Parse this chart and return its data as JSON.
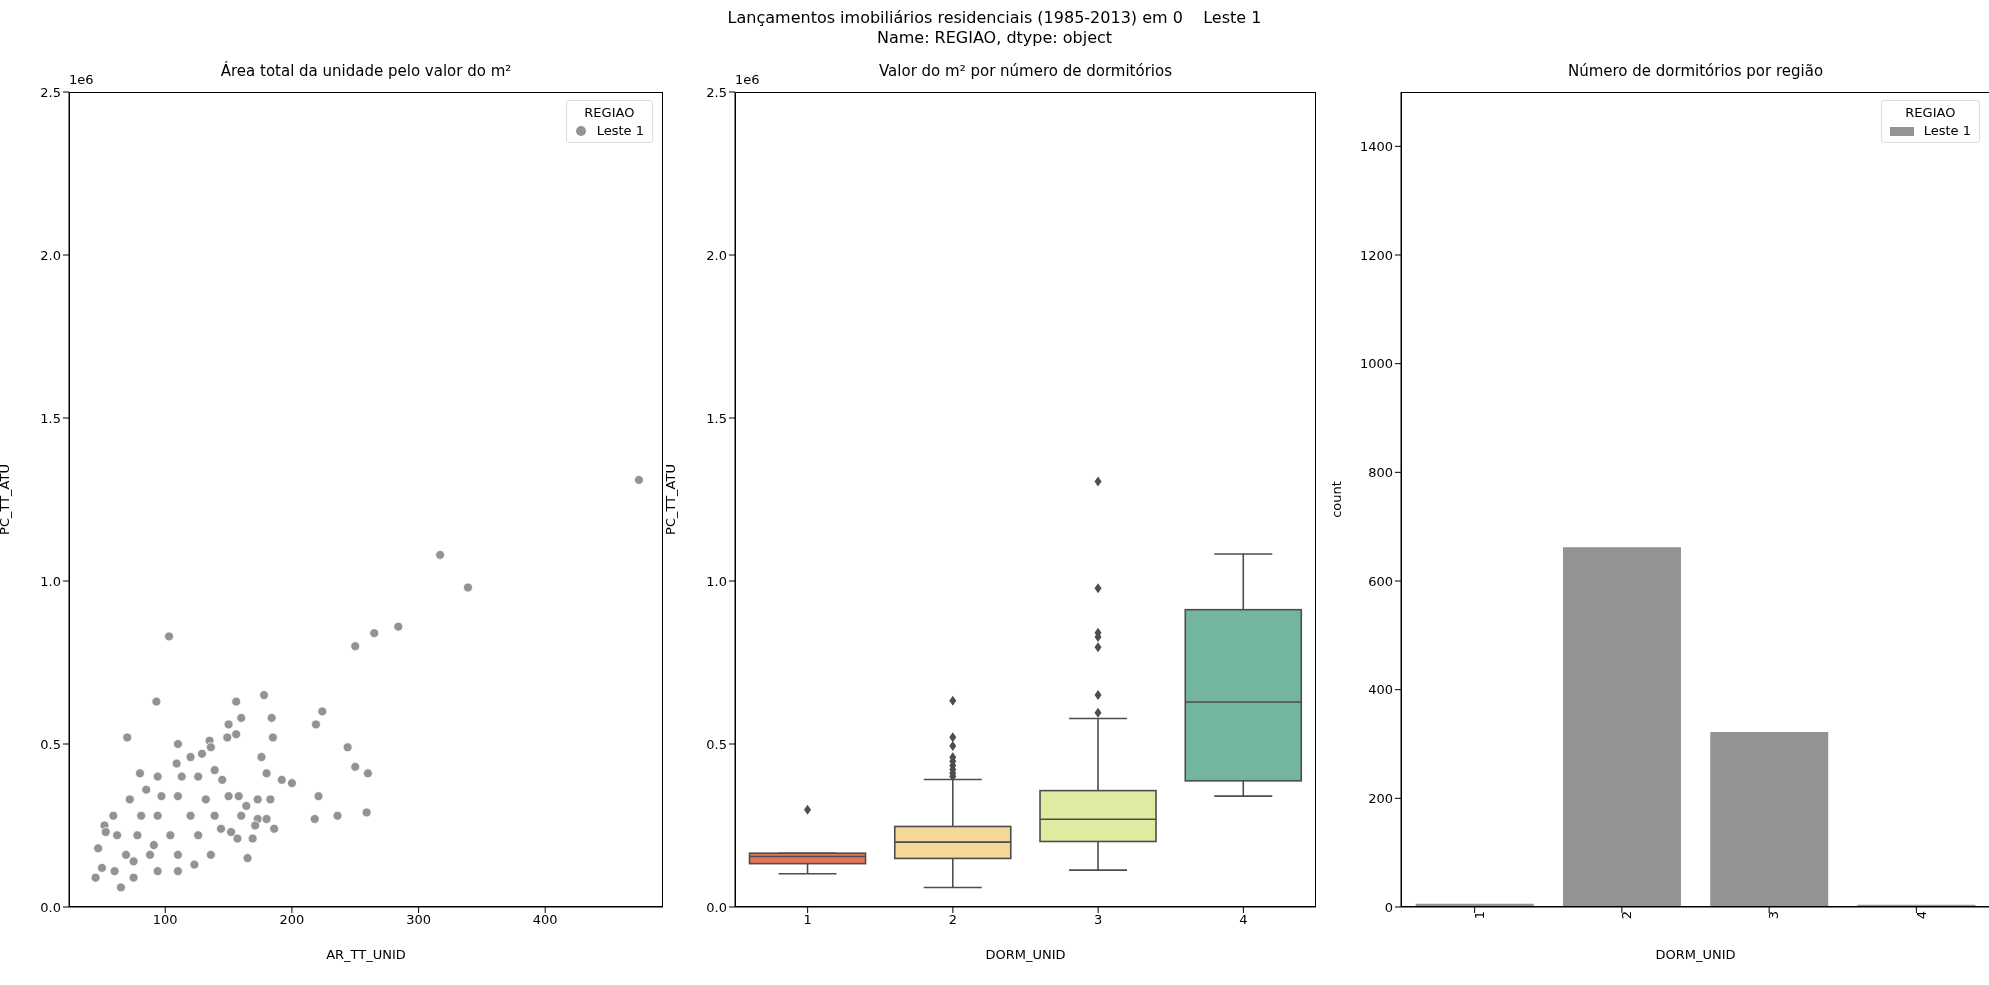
{
  "chart_data": [
    {
      "type": "other",
      "title": "Lançamentos imobiliários residenciais (1985-2013) em 0    Leste 1",
      "subtitle": "Name: REGIAO, dtype: object"
    },
    {
      "type": "scatter",
      "title": "Área total da unidade pelo valor do m²",
      "xlabel": "AR_TT_UNID",
      "ylabel": "PC_TT_ATU",
      "annotations": [
        "1e6"
      ],
      "legend_title": "REGIAO",
      "legend": "top right",
      "marker": "circle",
      "xlim": [
        24,
        493
      ],
      "xticks": [
        100,
        200,
        300,
        400
      ],
      "ylim": [
        0,
        2.5
      ],
      "yticks": [
        {
          "value": 0,
          "label": "0.0"
        },
        {
          "value": 0.5,
          "label": "0.5"
        },
        {
          "value": 1,
          "label": "1.0"
        },
        {
          "value": 1.5,
          "label": "1.5"
        },
        {
          "value": 2,
          "label": "2.0"
        },
        {
          "value": 2.5,
          "label": "2.5"
        }
      ],
      "series": [
        {
          "name": "Leste 1",
          "color": "#939393",
          "x": [
            474,
            317,
            339,
            103,
            250,
            265,
            284,
            93,
            178,
            156,
            224,
            219,
            160,
            184,
            150,
            70,
            244,
            250,
            260,
            185,
            156,
            149,
            176,
            180,
            192,
            200,
            221,
            173,
            183,
            218,
            236,
            259,
            173,
            180,
            186,
            169,
            165,
            157,
            152,
            110,
            135,
            80,
            45,
            47,
            52,
            65,
            60,
            136,
            129,
            120,
            109,
            94,
            85,
            72,
            59,
            53,
            50,
            75,
            94,
            110,
            123,
            136,
            144,
            150,
            145,
            158,
            164,
            171,
            160,
            78,
            94,
            110,
            126,
            88,
            104,
            120,
            132,
            69,
            62,
            81,
            97,
            113,
            139,
            110,
            126,
            139,
            75,
            91
          ],
          "values": [
            1.31,
            1.08,
            0.98,
            0.83,
            0.8,
            0.84,
            0.86,
            0.63,
            0.65,
            0.63,
            0.6,
            0.56,
            0.58,
            0.58,
            0.56,
            0.52,
            0.49,
            0.43,
            0.41,
            0.52,
            0.53,
            0.52,
            0.46,
            0.41,
            0.39,
            0.38,
            0.34,
            0.33,
            0.33,
            0.27,
            0.28,
            0.29,
            0.27,
            0.27,
            0.24,
            0.21,
            0.15,
            0.21,
            0.23,
            0.5,
            0.51,
            0.41,
            0.09,
            0.18,
            0.25,
            0.06,
            0.11,
            0.49,
            0.47,
            0.46,
            0.44,
            0.4,
            0.36,
            0.33,
            0.28,
            0.23,
            0.12,
            0.09,
            0.11,
            0.11,
            0.13,
            0.16,
            0.24,
            0.34,
            0.39,
            0.34,
            0.31,
            0.25,
            0.28,
            0.22,
            0.28,
            0.34,
            0.4,
            0.16,
            0.22,
            0.28,
            0.33,
            0.16,
            0.22,
            0.28,
            0.34,
            0.4,
            0.42,
            0.16,
            0.22,
            0.28,
            0.14,
            0.19
          ]
        }
      ]
    },
    {
      "type": "box",
      "title": "Valor do m² por número de dormitórios",
      "xlabel": "DORM_UNID",
      "ylabel": "PC_TT_ATU",
      "annotations": [
        "1e6"
      ],
      "marker": "diamond",
      "categories": [
        "1",
        "2",
        "3",
        "4"
      ],
      "colors": [
        "#e2775a",
        "#f3d897",
        "#dfeba0",
        "#73b5a0"
      ],
      "ylim": [
        0,
        2.5
      ],
      "yticks": [
        {
          "value": 0,
          "label": "0.0"
        },
        {
          "value": 0.5,
          "label": "0.5"
        },
        {
          "value": 1,
          "label": "1.0"
        },
        {
          "value": 1.5,
          "label": "1.5"
        },
        {
          "value": 2,
          "label": "2.0"
        },
        {
          "value": 2.5,
          "label": "2.5"
        }
      ],
      "boxes": [
        {
          "low": 0.102,
          "q1": 0.133,
          "median": 0.155,
          "q3": 0.165,
          "high": 0.165,
          "outliers": [
            0.298
          ]
        },
        {
          "low": 0.06,
          "q1": 0.149,
          "median": 0.199,
          "q3": 0.247,
          "high": 0.391,
          "outliers": [
            0.633,
            0.521,
            0.494,
            0.459,
            0.447,
            0.434,
            0.422,
            0.41,
            0.4
          ]
        },
        {
          "low": 0.113,
          "q1": 0.201,
          "median": 0.269,
          "q3": 0.357,
          "high": 0.578,
          "outliers": [
            0.596,
            0.65,
            0.797,
            0.828,
            0.841,
            0.978,
            1.305
          ]
        },
        {
          "low": 0.34,
          "q1": 0.387,
          "median": 0.629,
          "q3": 0.912,
          "high": 1.083
        }
      ]
    },
    {
      "type": "bar",
      "title": "Número de dormitórios por região",
      "xlabel": "DORM_UNID",
      "ylabel": "count",
      "legend_title": "REGIAO",
      "legend": "top right",
      "categories": [
        "1",
        "2",
        "3",
        "4"
      ],
      "ylim": [
        0,
        1500
      ],
      "yticks": [
        0,
        200,
        400,
        600,
        800,
        1000,
        1200,
        1400
      ],
      "series": [
        {
          "name": "Leste 1",
          "color": "#939393",
          "values": [
            6,
            662,
            322,
            4
          ]
        }
      ]
    }
  ]
}
